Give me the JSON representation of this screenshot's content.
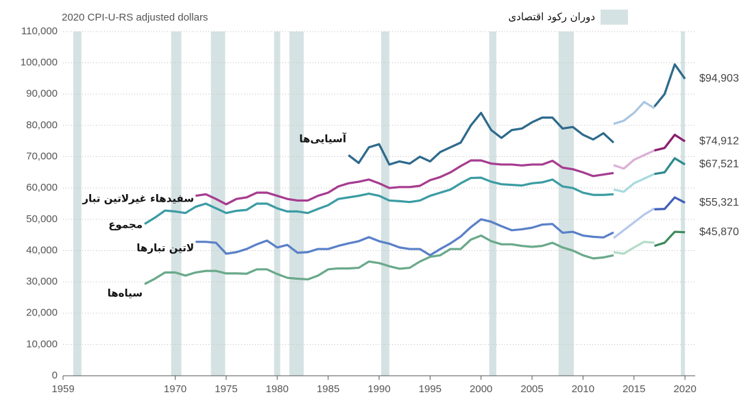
{
  "chart_data": {
    "type": "line",
    "subtitle": "2020 CPI-U-RS adjusted dollars",
    "recession_label": "دوران رکود اقتصادی",
    "recession_color": "#d5e2e3",
    "recessions": [
      [
        1960.0,
        1960.8
      ],
      [
        1969.6,
        1970.6
      ],
      [
        1973.5,
        1974.9
      ],
      [
        1979.7,
        1980.3
      ],
      [
        1981.2,
        1982.6
      ],
      [
        1990.2,
        1991.0
      ],
      [
        2000.8,
        2001.5
      ],
      [
        2007.6,
        2009.1
      ],
      [
        2019.6,
        2020.0
      ]
    ],
    "xlim": [
      1959,
      2021
    ],
    "xticks": [
      1959,
      1970,
      1975,
      1980,
      1985,
      1990,
      1995,
      2000,
      2005,
      2010,
      2015,
      2020
    ],
    "ylim": [
      0,
      110000
    ],
    "yticks": [
      0,
      {
        "value": 10000,
        "label": "10,000"
      },
      {
        "value": 20000,
        "label": "20,000"
      },
      {
        "value": 30000,
        "label": "30,000"
      },
      {
        "value": 40000,
        "label": "40,000"
      },
      {
        "value": 50000,
        "label": "50,000"
      },
      {
        "value": 60000,
        "label": "60,000"
      },
      {
        "value": 70000,
        "label": "70,000"
      },
      {
        "value": 80000,
        "label": "80,000"
      },
      {
        "value": 90000,
        "label": "90,000"
      },
      {
        "value": 100000,
        "label": "100,000"
      },
      {
        "value": 110000,
        "label": "110,000"
      }
    ],
    "grid": true,
    "series": [
      {
        "name": "آسیایی‌ها",
        "colors": [
          "#2e6a8c",
          "#a9c6e0",
          "#2e6a8c"
        ],
        "x": [
          1987,
          1988,
          1989,
          1990,
          1991,
          1992,
          1993,
          1994,
          1995,
          1996,
          1997,
          1998,
          1999,
          2000,
          2001,
          2002,
          2003,
          2004,
          2005,
          2006,
          2007,
          2008,
          2009,
          2010,
          2011,
          2012,
          2013,
          null,
          2013,
          2014,
          2015,
          2016,
          2017,
          null,
          2017,
          2018,
          2019,
          2020
        ],
        "values": [
          70500,
          68000,
          73000,
          74000,
          67500,
          68500,
          67800,
          70000,
          68500,
          71500,
          73000,
          74500,
          80000,
          84000,
          78500,
          76000,
          78500,
          79000,
          81000,
          82500,
          82500,
          79000,
          79500,
          77000,
          75500,
          77500,
          74500,
          null,
          80500,
          81500,
          84000,
          87500,
          85500,
          null,
          86000,
          90000,
          99500,
          94903
        ],
        "value_labels": [
          null,
          null,
          null,
          null,
          null,
          null,
          null,
          null,
          null,
          null,
          null,
          null,
          null,
          null,
          null,
          null,
          null,
          null,
          null,
          null,
          null,
          null,
          null,
          null,
          null,
          null,
          null,
          null,
          null,
          null,
          null,
          null,
          null,
          null,
          null,
          null,
          null,
          "$94,903"
        ]
      },
      {
        "name": "سفیدهاء غیرلاتین تبار",
        "colors": [
          "#a63c8f",
          "#dcb0d6",
          "#8a1f6e"
        ],
        "x": [
          1972,
          1973,
          1974,
          1975,
          1976,
          1977,
          1978,
          1979,
          1980,
          1981,
          1982,
          1983,
          1984,
          1985,
          1986,
          1987,
          1988,
          1989,
          1990,
          1991,
          1992,
          1993,
          1994,
          1995,
          1996,
          1997,
          1998,
          1999,
          2000,
          2001,
          2002,
          2003,
          2004,
          2005,
          2006,
          2007,
          2008,
          2009,
          2010,
          2011,
          2012,
          2013,
          null,
          2013,
          2014,
          2015,
          2016,
          2017,
          null,
          2017,
          2018,
          2019,
          2020
        ],
        "values": [
          57500,
          58000,
          56500,
          54800,
          56500,
          57000,
          58500,
          58500,
          57500,
          56500,
          56000,
          56000,
          57500,
          58500,
          60500,
          61500,
          62000,
          62700,
          61500,
          60000,
          60300,
          60300,
          60700,
          62500,
          63500,
          65000,
          67000,
          68800,
          68800,
          67800,
          67500,
          67500,
          67200,
          67500,
          67500,
          68700,
          66500,
          66000,
          65000,
          63800,
          64300,
          64800,
          null,
          67300,
          66200,
          69000,
          70500,
          72000,
          null,
          72000,
          72800,
          77000,
          74912
        ],
        "value_labels": [
          null,
          null,
          null,
          null,
          null,
          null,
          null,
          null,
          null,
          null,
          null,
          null,
          null,
          null,
          null,
          null,
          null,
          null,
          null,
          null,
          null,
          null,
          null,
          null,
          null,
          null,
          null,
          null,
          null,
          null,
          null,
          null,
          null,
          null,
          null,
          null,
          null,
          null,
          null,
          null,
          null,
          null,
          null,
          null,
          null,
          null,
          null,
          null,
          null,
          null,
          null,
          null,
          "$74,912"
        ]
      },
      {
        "name": "مجموع",
        "colors": [
          "#3c9ca3",
          "#a8dade",
          "#2f8a8e"
        ],
        "x": [
          1967,
          1968,
          1969,
          1970,
          1971,
          1972,
          1973,
          1974,
          1975,
          1976,
          1977,
          1978,
          1979,
          1980,
          1981,
          1982,
          1983,
          1984,
          1985,
          1986,
          1987,
          1988,
          1989,
          1990,
          1991,
          1992,
          1993,
          1994,
          1995,
          1996,
          1997,
          1998,
          1999,
          2000,
          2001,
          2002,
          2003,
          2004,
          2005,
          2006,
          2007,
          2008,
          2009,
          2010,
          2011,
          2012,
          2013,
          null,
          2013,
          2014,
          2015,
          2016,
          2017,
          null,
          2017,
          2018,
          2019,
          2020
        ],
        "values": [
          48500,
          50500,
          52800,
          52500,
          52000,
          54000,
          55000,
          53500,
          52000,
          52700,
          53000,
          55000,
          55000,
          53500,
          52500,
          52500,
          52000,
          53300,
          54500,
          56500,
          57000,
          57500,
          58200,
          57500,
          56000,
          55800,
          55500,
          56000,
          57500,
          58500,
          59500,
          61500,
          63200,
          63300,
          62000,
          61200,
          61000,
          60800,
          61500,
          61800,
          62700,
          60500,
          60000,
          58500,
          57800,
          57800,
          58000,
          null,
          59500,
          58800,
          61500,
          63000,
          64500,
          null,
          64500,
          65000,
          69500,
          67521
        ],
        "value_labels": [
          null,
          null,
          null,
          null,
          null,
          null,
          null,
          null,
          null,
          null,
          null,
          null,
          null,
          null,
          null,
          null,
          null,
          null,
          null,
          null,
          null,
          null,
          null,
          null,
          null,
          null,
          null,
          null,
          null,
          null,
          null,
          null,
          null,
          null,
          null,
          null,
          null,
          null,
          null,
          null,
          null,
          null,
          null,
          null,
          null,
          null,
          null,
          null,
          null,
          null,
          null,
          null,
          null,
          null,
          null,
          null,
          null,
          "$67,521"
        ]
      },
      {
        "name": "لاتین تبارها",
        "colors": [
          "#5a80c8",
          "#b5c8ec",
          "#3f5fb8"
        ],
        "x": [
          1972,
          1973,
          1974,
          1975,
          1976,
          1977,
          1978,
          1979,
          1980,
          1981,
          1982,
          1983,
          1984,
          1985,
          1986,
          1987,
          1988,
          1989,
          1990,
          1991,
          1992,
          1993,
          1994,
          1995,
          1996,
          1997,
          1998,
          1999,
          2000,
          2001,
          2002,
          2003,
          2004,
          2005,
          2006,
          2007,
          2008,
          2009,
          2010,
          2011,
          2012,
          2013,
          null,
          2013,
          2014,
          2015,
          2016,
          2017,
          null,
          2017,
          2018,
          2019,
          2020
        ],
        "values": [
          42800,
          42800,
          42500,
          39000,
          39500,
          40500,
          42000,
          43200,
          41000,
          41800,
          39300,
          39500,
          40500,
          40500,
          41500,
          42300,
          43000,
          44300,
          43000,
          42200,
          41000,
          40500,
          40500,
          38500,
          40500,
          42300,
          44500,
          47500,
          50000,
          49200,
          47800,
          46500,
          46800,
          47300,
          48300,
          48500,
          45700,
          46000,
          44800,
          44400,
          44200,
          45800,
          null,
          44000,
          46500,
          49000,
          51500,
          53500,
          null,
          53200,
          53300,
          57000,
          55321
        ],
        "value_labels": [
          null,
          null,
          null,
          null,
          null,
          null,
          null,
          null,
          null,
          null,
          null,
          null,
          null,
          null,
          null,
          null,
          null,
          null,
          null,
          null,
          null,
          null,
          null,
          null,
          null,
          null,
          null,
          null,
          null,
          null,
          null,
          null,
          null,
          null,
          null,
          null,
          null,
          null,
          null,
          null,
          null,
          null,
          null,
          null,
          null,
          null,
          null,
          null,
          null,
          null,
          null,
          null,
          "$55,321"
        ]
      },
      {
        "name": "سیاه‌ها",
        "colors": [
          "#6aa98b",
          "#b4dcc8",
          "#3f8a5e"
        ],
        "x": [
          1967,
          1968,
          1969,
          1970,
          1971,
          1972,
          1973,
          1974,
          1975,
          1976,
          1977,
          1978,
          1979,
          1980,
          1981,
          1982,
          1983,
          1984,
          1985,
          1986,
          1987,
          1988,
          1989,
          1990,
          1991,
          1992,
          1993,
          1994,
          1995,
          1996,
          1997,
          1998,
          1999,
          2000,
          2001,
          2002,
          2003,
          2004,
          2005,
          2006,
          2007,
          2008,
          2009,
          2010,
          2011,
          2012,
          2013,
          null,
          2013,
          2014,
          2015,
          2016,
          2017,
          null,
          2017,
          2018,
          2019,
          2020
        ],
        "values": [
          29300,
          31000,
          33000,
          33000,
          32000,
          33000,
          33500,
          33500,
          32700,
          32700,
          32600,
          34000,
          34000,
          32500,
          31300,
          31000,
          30800,
          32000,
          34000,
          34300,
          34300,
          34500,
          36500,
          36000,
          35000,
          34200,
          34500,
          36500,
          38000,
          38500,
          40500,
          40500,
          43500,
          44800,
          43000,
          42000,
          42000,
          41500,
          41200,
          41500,
          42500,
          41000,
          40000,
          38500,
          37500,
          37800,
          38500,
          null,
          39500,
          39000,
          41000,
          42800,
          42500,
          null,
          41500,
          42500,
          46000,
          45870
        ],
        "value_labels": [
          null,
          null,
          null,
          null,
          null,
          null,
          null,
          null,
          null,
          null,
          null,
          null,
          null,
          null,
          null,
          null,
          null,
          null,
          null,
          null,
          null,
          null,
          null,
          null,
          null,
          null,
          null,
          null,
          null,
          null,
          null,
          null,
          null,
          null,
          null,
          null,
          null,
          null,
          null,
          null,
          null,
          null,
          null,
          null,
          null,
          null,
          null,
          null,
          null,
          null,
          null,
          null,
          null,
          null,
          null,
          null,
          null,
          "$45,870"
        ]
      }
    ]
  }
}
